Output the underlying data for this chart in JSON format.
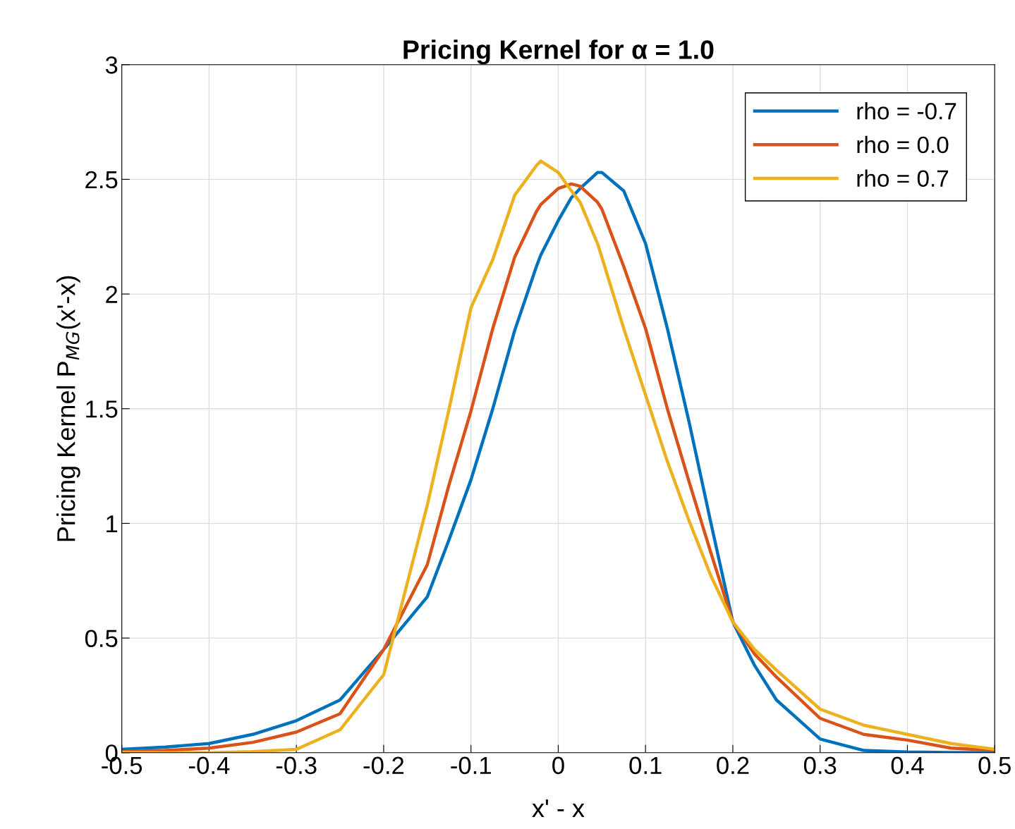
{
  "chart_data": {
    "type": "line",
    "title": "Pricing Kernel for α = 1.0",
    "xlabel": "x' - x",
    "ylabel": "Pricing Kernel P$_{MG}$(x'-x)",
    "x": [
      -0.5,
      -0.45,
      -0.4,
      -0.35,
      -0.3,
      -0.25,
      -0.2,
      -0.15,
      -0.125,
      -0.1,
      -0.075,
      -0.05,
      -0.025,
      -0.02,
      0,
      0.015,
      0.025,
      0.045,
      0.05,
      0.075,
      0.1,
      0.125,
      0.15,
      0.175,
      0.2,
      0.225,
      0.25,
      0.3,
      0.35,
      0.4,
      0.45,
      0.5
    ],
    "series": [
      {
        "name": "rho = -0.7",
        "color": "#0072bd",
        "values": [
          0.015,
          0.025,
          0.04,
          0.08,
          0.14,
          0.23,
          0.45,
          0.68,
          0.93,
          1.19,
          1.5,
          1.84,
          2.12,
          2.17,
          2.32,
          2.42,
          2.46,
          2.53,
          2.53,
          2.45,
          2.22,
          1.85,
          1.44,
          1.0,
          0.57,
          0.38,
          0.23,
          0.06,
          0.01,
          0.003,
          0.001,
          0.0
        ]
      },
      {
        "name": "rho = 0.0",
        "color": "#d95319",
        "values": [
          0.005,
          0.01,
          0.02,
          0.045,
          0.09,
          0.17,
          0.45,
          0.82,
          1.17,
          1.49,
          1.85,
          2.16,
          2.36,
          2.39,
          2.46,
          2.48,
          2.47,
          2.4,
          2.37,
          2.12,
          1.85,
          1.5,
          1.18,
          0.87,
          0.57,
          0.43,
          0.33,
          0.15,
          0.08,
          0.055,
          0.02,
          0.01
        ]
      },
      {
        "name": "rho = 0.7",
        "color": "#edb120",
        "values": [
          0.002,
          0.0,
          0.0,
          0.005,
          0.015,
          0.1,
          0.34,
          1.08,
          1.5,
          1.94,
          2.15,
          2.43,
          2.56,
          2.58,
          2.53,
          2.45,
          2.4,
          2.22,
          2.16,
          1.85,
          1.56,
          1.27,
          1.01,
          0.77,
          0.57,
          0.45,
          0.36,
          0.19,
          0.12,
          0.08,
          0.04,
          0.015
        ]
      }
    ],
    "xlim": [
      -0.5,
      0.5
    ],
    "xticks": [
      -0.5,
      -0.4,
      -0.3,
      -0.2,
      -0.1,
      0,
      0.1,
      0.2,
      0.3,
      0.4,
      0.5
    ],
    "ylim": [
      0,
      3
    ],
    "yticks": [
      0,
      0.5,
      1,
      1.5,
      2,
      2.5,
      3
    ],
    "grid": true,
    "legend": "top right",
    "line_style": "solid"
  }
}
